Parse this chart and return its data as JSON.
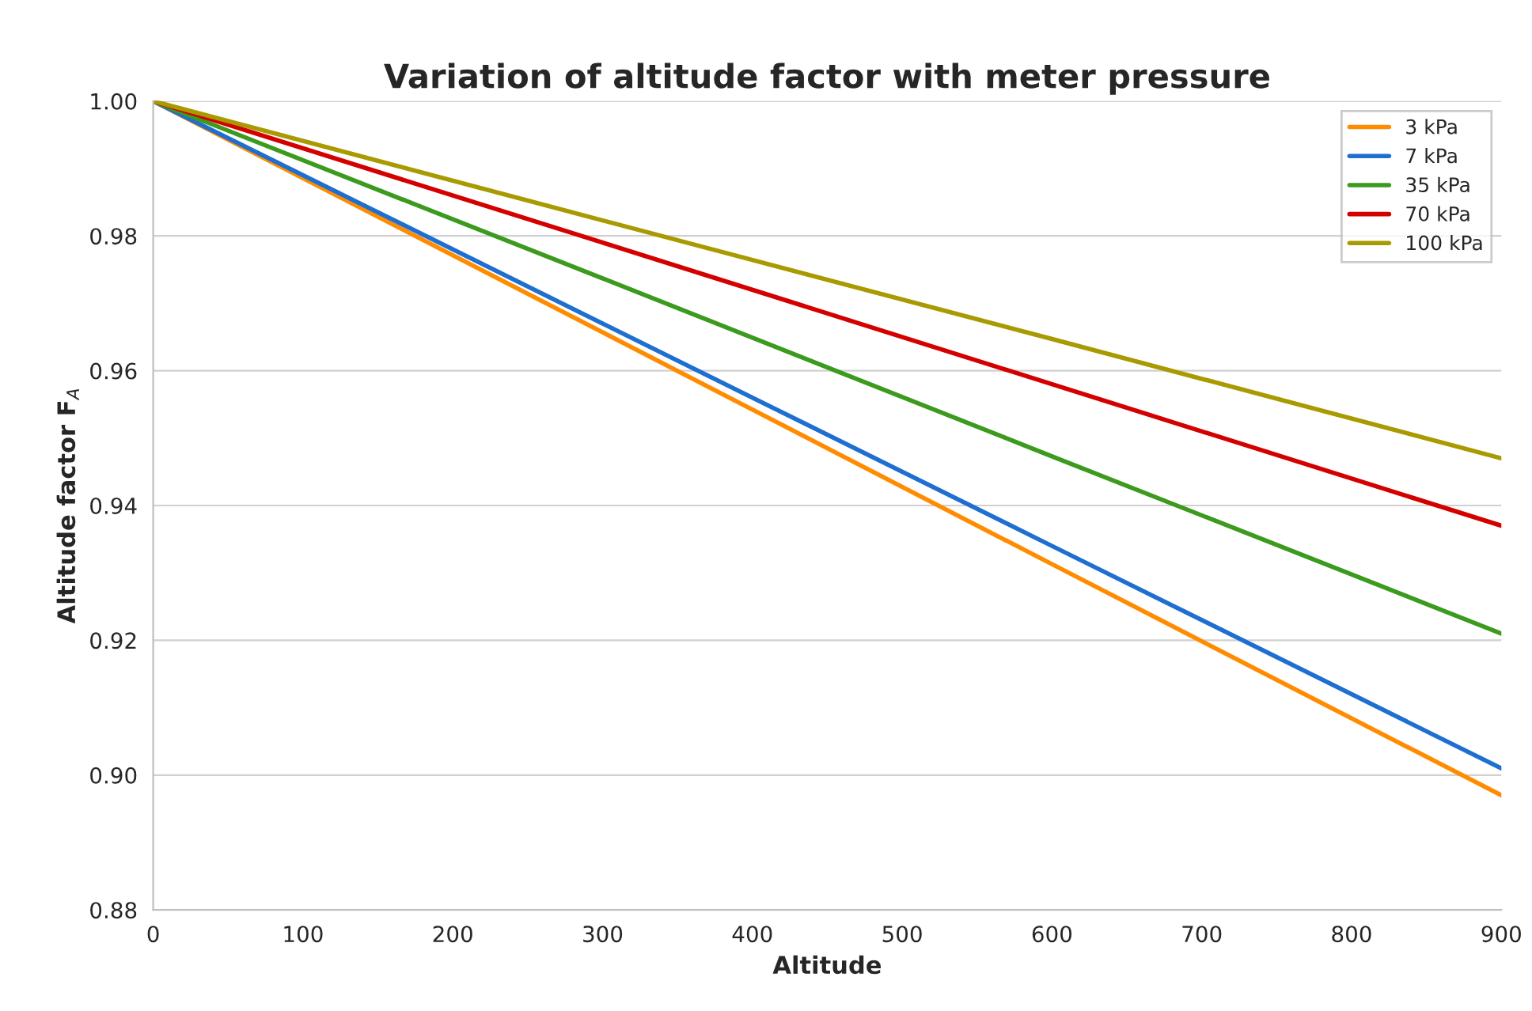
{
  "chart_data": {
    "type": "line",
    "title": "Variation of altitude factor with meter pressure",
    "xlabel": "Altitude",
    "ylabel": "Altitude factor F$_{A}$",
    "x": [
      0,
      300,
      600,
      900
    ],
    "series": [
      {
        "name": "3 kPa",
        "color": "#ff8c00",
        "values": [
          1.0,
          0.9657,
          0.9313,
          0.897
        ]
      },
      {
        "name": "7 kPa",
        "color": "#1f6fd1",
        "values": [
          1.0,
          0.967,
          0.934,
          0.901
        ]
      },
      {
        "name": "35 kPa",
        "color": "#3c9a1e",
        "values": [
          1.0,
          0.9737,
          0.9473,
          0.921
        ]
      },
      {
        "name": "70 kPa",
        "color": "#d40000",
        "values": [
          1.0,
          0.979,
          0.958,
          0.937
        ]
      },
      {
        "name": "100 kPa",
        "color": "#a89a00",
        "values": [
          1.0,
          0.9823,
          0.9647,
          0.947
        ]
      }
    ],
    "xlim": [
      0,
      900
    ],
    "xticks": [
      0,
      100,
      200,
      300,
      400,
      500,
      600,
      700,
      800,
      900
    ],
    "ylim": [
      0.88,
      1.0
    ],
    "yticks": [
      {
        "value": 0.88,
        "label": "0.88"
      },
      {
        "value": 0.9,
        "label": "0.90"
      },
      {
        "value": 0.92,
        "label": "0.92"
      },
      {
        "value": 0.94,
        "label": "0.94"
      },
      {
        "value": 0.96,
        "label": "0.96"
      },
      {
        "value": 0.98,
        "label": "0.98"
      },
      {
        "value": 1.0,
        "label": "1.00"
      }
    ],
    "grid": "y",
    "legend": "top right",
    "marker": "none",
    "line_style": "solid"
  }
}
